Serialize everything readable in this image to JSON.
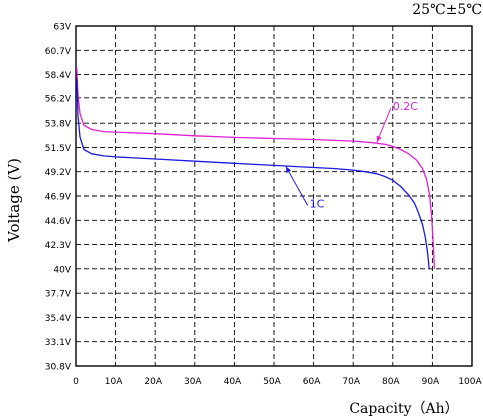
{
  "chart_data": {
    "type": "line",
    "header_note": "25℃±5℃",
    "xlabel": "Capacity（Ah）",
    "ylabel": "Voltage (V)",
    "xlim": [
      0,
      100
    ],
    "ylim": [
      30.8,
      63
    ],
    "grid": true,
    "x_ticks": [
      {
        "value": 0,
        "label": "0"
      },
      {
        "value": 10,
        "label": "10A"
      },
      {
        "value": 20,
        "label": "20A"
      },
      {
        "value": 30,
        "label": "30A"
      },
      {
        "value": 40,
        "label": "40A"
      },
      {
        "value": 50,
        "label": "50A"
      },
      {
        "value": 60,
        "label": "60A"
      },
      {
        "value": 70,
        "label": "70A"
      },
      {
        "value": 80,
        "label": "80A"
      },
      {
        "value": 90,
        "label": "90A"
      },
      {
        "value": 100,
        "label": "100A"
      }
    ],
    "y_ticks": [
      {
        "value": 63,
        "label": "63V"
      },
      {
        "value": 60.7,
        "label": "60.7V"
      },
      {
        "value": 58.4,
        "label": "58.4V"
      },
      {
        "value": 56.2,
        "label": "56.2V"
      },
      {
        "value": 53.8,
        "label": "53.8V"
      },
      {
        "value": 51.5,
        "label": "51.5V"
      },
      {
        "value": 49.2,
        "label": "49.2V"
      },
      {
        "value": 46.9,
        "label": "46.9V"
      },
      {
        "value": 44.6,
        "label": "44.6V"
      },
      {
        "value": 42.3,
        "label": "42.3V"
      },
      {
        "value": 40,
        "label": "40V"
      },
      {
        "value": 37.7,
        "label": "37.7V"
      },
      {
        "value": 35.4,
        "label": "35.4V"
      },
      {
        "value": 33.1,
        "label": "33.1V"
      },
      {
        "value": 30.8,
        "label": "30.8V"
      }
    ],
    "series": [
      {
        "name": "0.2C",
        "color": "#e020d0",
        "annotation_at": [
          80,
          55.4
        ],
        "arrow_to": [
          76,
          52.0
        ],
        "x": [
          0.2,
          0.5,
          1,
          2,
          4,
          7,
          10,
          20,
          30,
          40,
          50,
          60,
          70,
          75,
          78,
          80,
          82,
          84,
          86,
          87.5,
          88.5,
          89.3,
          89.8,
          90.2,
          90.5
        ],
        "y": [
          59.0,
          56.5,
          54.7,
          53.6,
          53.2,
          53.0,
          52.95,
          52.8,
          52.6,
          52.45,
          52.35,
          52.25,
          52.1,
          51.95,
          51.8,
          51.6,
          51.3,
          50.9,
          50.3,
          49.5,
          48.5,
          47.0,
          45.0,
          42.5,
          40.0
        ]
      },
      {
        "name": "1C",
        "color": "#1a1ae0",
        "annotation_at": [
          59,
          46.2
        ],
        "arrow_to": [
          53,
          49.7
        ],
        "x": [
          0.2,
          0.5,
          1,
          2,
          4,
          7,
          10,
          20,
          30,
          40,
          50,
          60,
          65,
          70,
          73,
          76,
          78,
          80,
          82,
          84,
          85.5,
          86.5,
          87.5,
          88.2,
          88.8,
          89.2
        ],
        "y": [
          58.0,
          54.5,
          52.5,
          51.3,
          50.9,
          50.7,
          50.6,
          50.4,
          50.2,
          50.0,
          49.8,
          49.6,
          49.5,
          49.35,
          49.2,
          49.0,
          48.75,
          48.4,
          47.8,
          47.0,
          46.2,
          45.3,
          44.2,
          43.0,
          41.5,
          40.0
        ]
      }
    ]
  }
}
